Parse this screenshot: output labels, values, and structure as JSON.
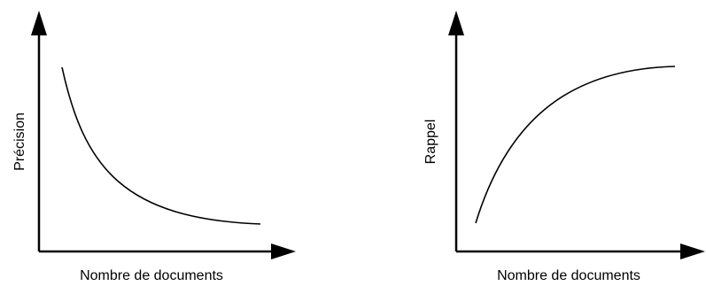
{
  "chart_data": [
    {
      "type": "line",
      "xlabel": "Nombre de documents",
      "ylabel": "Précision",
      "grid": false,
      "axis_ticks": false,
      "trend": "decreasing",
      "colors": {
        "line": "#000000",
        "axes": "#000000"
      }
    },
    {
      "type": "line",
      "xlabel": "Nombre de documents",
      "ylabel": "Rappel",
      "grid": false,
      "axis_ticks": false,
      "trend": "increasing",
      "colors": {
        "line": "#000000",
        "axes": "#000000"
      }
    }
  ]
}
